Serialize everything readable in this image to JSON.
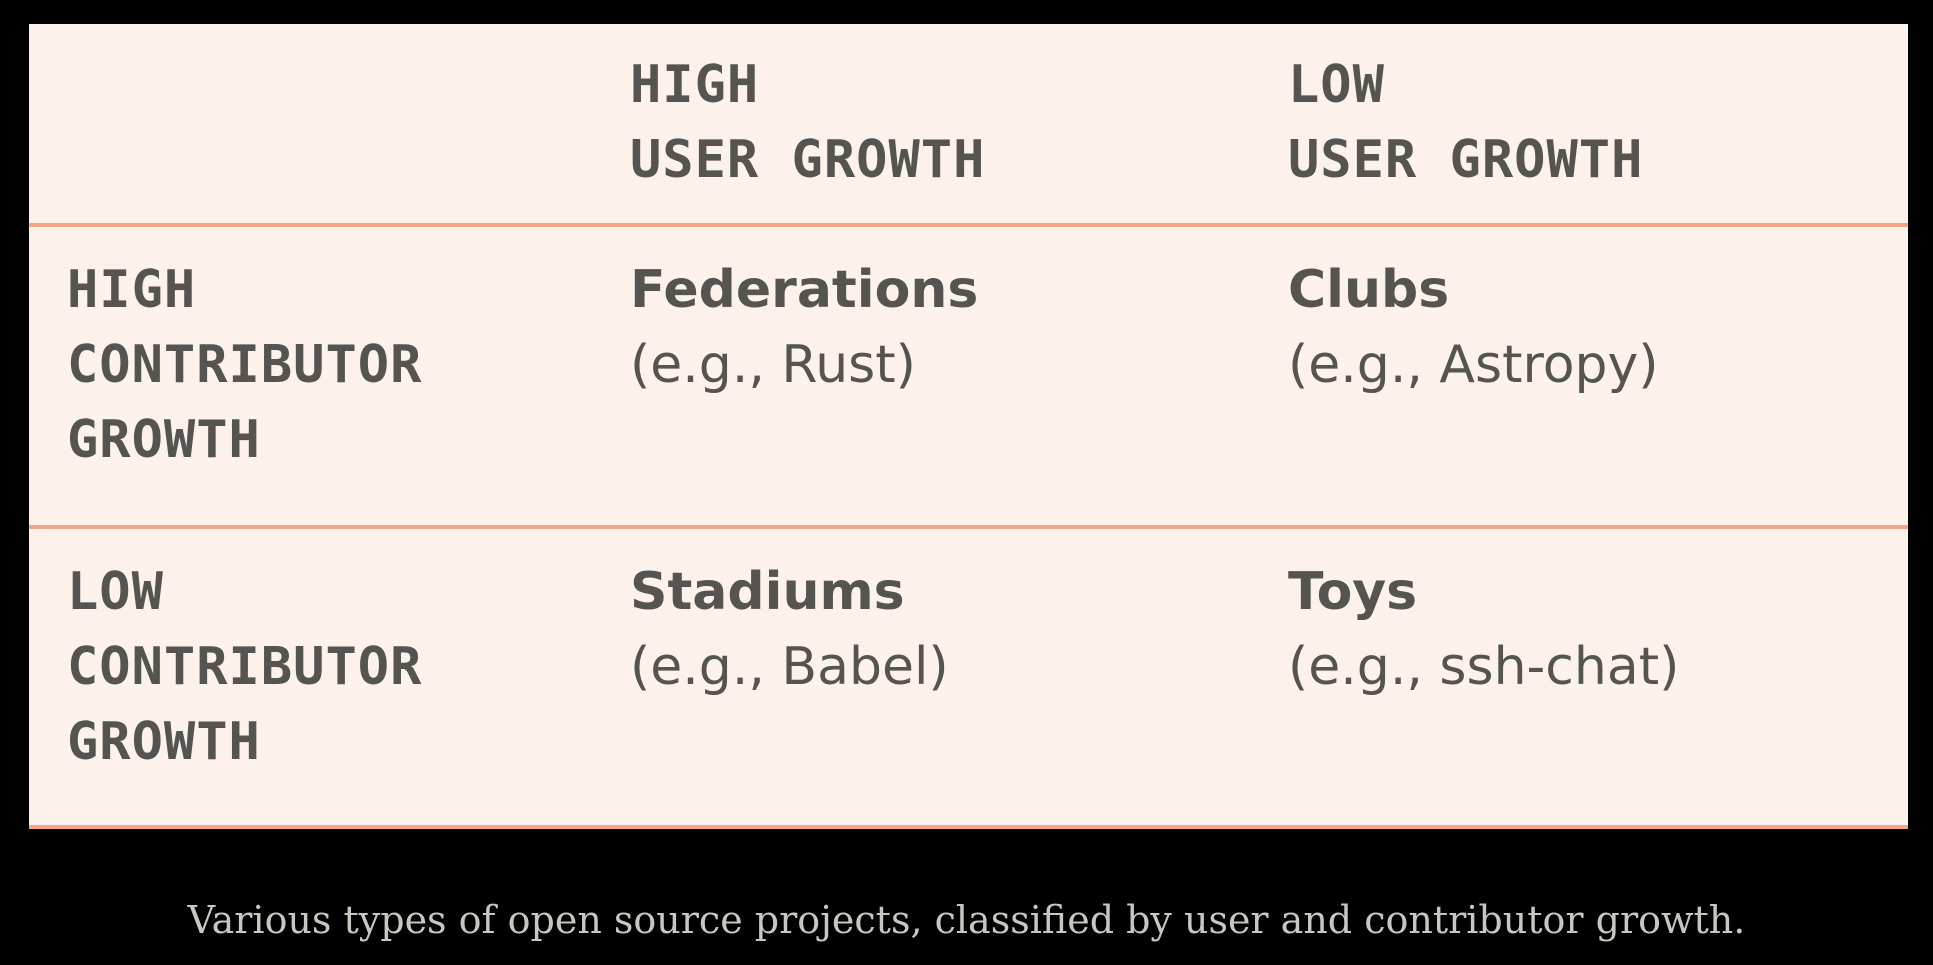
{
  "table": {
    "columns": [
      {
        "line1": "HIGH",
        "line2": "USER GROWTH"
      },
      {
        "line1": "LOW",
        "line2": "USER GROWTH"
      }
    ],
    "rows": [
      {
        "label": {
          "line1": "HIGH",
          "line2": "CONTRIBUTOR",
          "line3": "GROWTH"
        },
        "cells": [
          {
            "name": "Federations",
            "example": "(e.g., Rust)"
          },
          {
            "name": "Clubs",
            "example": "(e.g., Astropy)"
          }
        ]
      },
      {
        "label": {
          "line1": "LOW",
          "line2": "CONTRIBUTOR",
          "line3": "GROWTH"
        },
        "cells": [
          {
            "name": "Stadiums",
            "example": "(e.g., Babel)"
          },
          {
            "name": "Toys",
            "example": "(e.g., ssh-chat)"
          }
        ]
      }
    ]
  },
  "caption": "Various types of open source projects, classified by user and contributor growth.",
  "colors": {
    "background": "#000000",
    "card": "#fdf1ec",
    "divider": "#f4a58a",
    "text": "#555450",
    "caption": "#c9c6c2"
  }
}
